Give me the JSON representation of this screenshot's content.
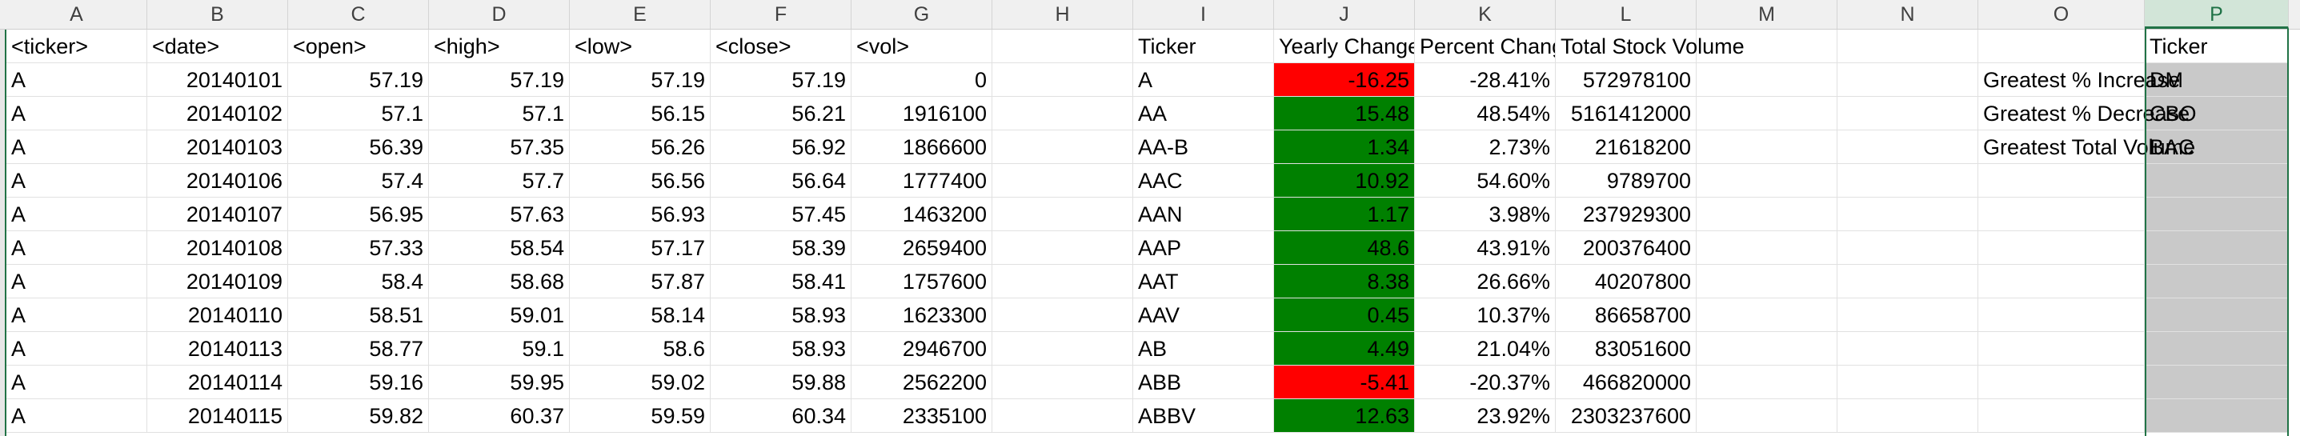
{
  "columns": [
    "A",
    "B",
    "C",
    "D",
    "E",
    "F",
    "G",
    "H",
    "I",
    "J",
    "K",
    "L",
    "M",
    "N",
    "O",
    "P"
  ],
  "selected_column": "P",
  "rows": [
    [
      "<ticker>",
      "<date>",
      "<open>",
      "<high>",
      "<low>",
      "<close>",
      "<vol>",
      "",
      "Ticker",
      "Yearly Change",
      "Percent Change",
      "Total Stock Volume",
      "",
      "",
      "",
      "Ticker"
    ],
    [
      "A",
      "20140101",
      "57.19",
      "57.19",
      "57.19",
      "57.19",
      "0",
      "",
      "A",
      "-16.25",
      "-28.41%",
      "572978100",
      "",
      "",
      "Greatest % Increase",
      "DM"
    ],
    [
      "A",
      "20140102",
      "57.1",
      "57.1",
      "56.15",
      "56.21",
      "1916100",
      "",
      "AA",
      "15.48",
      "48.54%",
      "5161412000",
      "",
      "",
      "Greatest % Decrease",
      "CBO"
    ],
    [
      "A",
      "20140103",
      "56.39",
      "57.35",
      "56.26",
      "56.92",
      "1866600",
      "",
      "AA-B",
      "1.34",
      "2.73%",
      "21618200",
      "",
      "",
      "Greatest Total Volume",
      "BAC"
    ],
    [
      "A",
      "20140106",
      "57.4",
      "57.7",
      "56.56",
      "56.64",
      "1777400",
      "",
      "AAC",
      "10.92",
      "54.60%",
      "9789700",
      "",
      "",
      "",
      ""
    ],
    [
      "A",
      "20140107",
      "56.95",
      "57.63",
      "56.93",
      "57.45",
      "1463200",
      "",
      "AAN",
      "1.17",
      "3.98%",
      "237929300",
      "",
      "",
      "",
      ""
    ],
    [
      "A",
      "20140108",
      "57.33",
      "58.54",
      "57.17",
      "58.39",
      "2659400",
      "",
      "AAP",
      "48.6",
      "43.91%",
      "200376400",
      "",
      "",
      "",
      ""
    ],
    [
      "A",
      "20140109",
      "58.4",
      "58.68",
      "57.87",
      "58.41",
      "1757600",
      "",
      "AAT",
      "8.38",
      "26.66%",
      "40207800",
      "",
      "",
      "",
      ""
    ],
    [
      "A",
      "20140110",
      "58.51",
      "59.01",
      "58.14",
      "58.93",
      "1623300",
      "",
      "AAV",
      "0.45",
      "10.37%",
      "86658700",
      "",
      "",
      "",
      ""
    ],
    [
      "A",
      "20140113",
      "58.77",
      "59.1",
      "58.6",
      "58.93",
      "2946700",
      "",
      "AB",
      "4.49",
      "21.04%",
      "83051600",
      "",
      "",
      "",
      ""
    ],
    [
      "A",
      "20140114",
      "59.16",
      "59.95",
      "59.02",
      "59.88",
      "2562200",
      "",
      "ABB",
      "-5.41",
      "-20.37%",
      "466820000",
      "",
      "",
      "",
      ""
    ],
    [
      "A",
      "20140115",
      "59.82",
      "60.37",
      "59.59",
      "60.34",
      "2335100",
      "",
      "ABBV",
      "12.63",
      "23.92%",
      "2303237600",
      "",
      "",
      "",
      ""
    ]
  ],
  "colors": {
    "negative": "#ff0000",
    "positive": "#008000",
    "selection": "#217346"
  }
}
